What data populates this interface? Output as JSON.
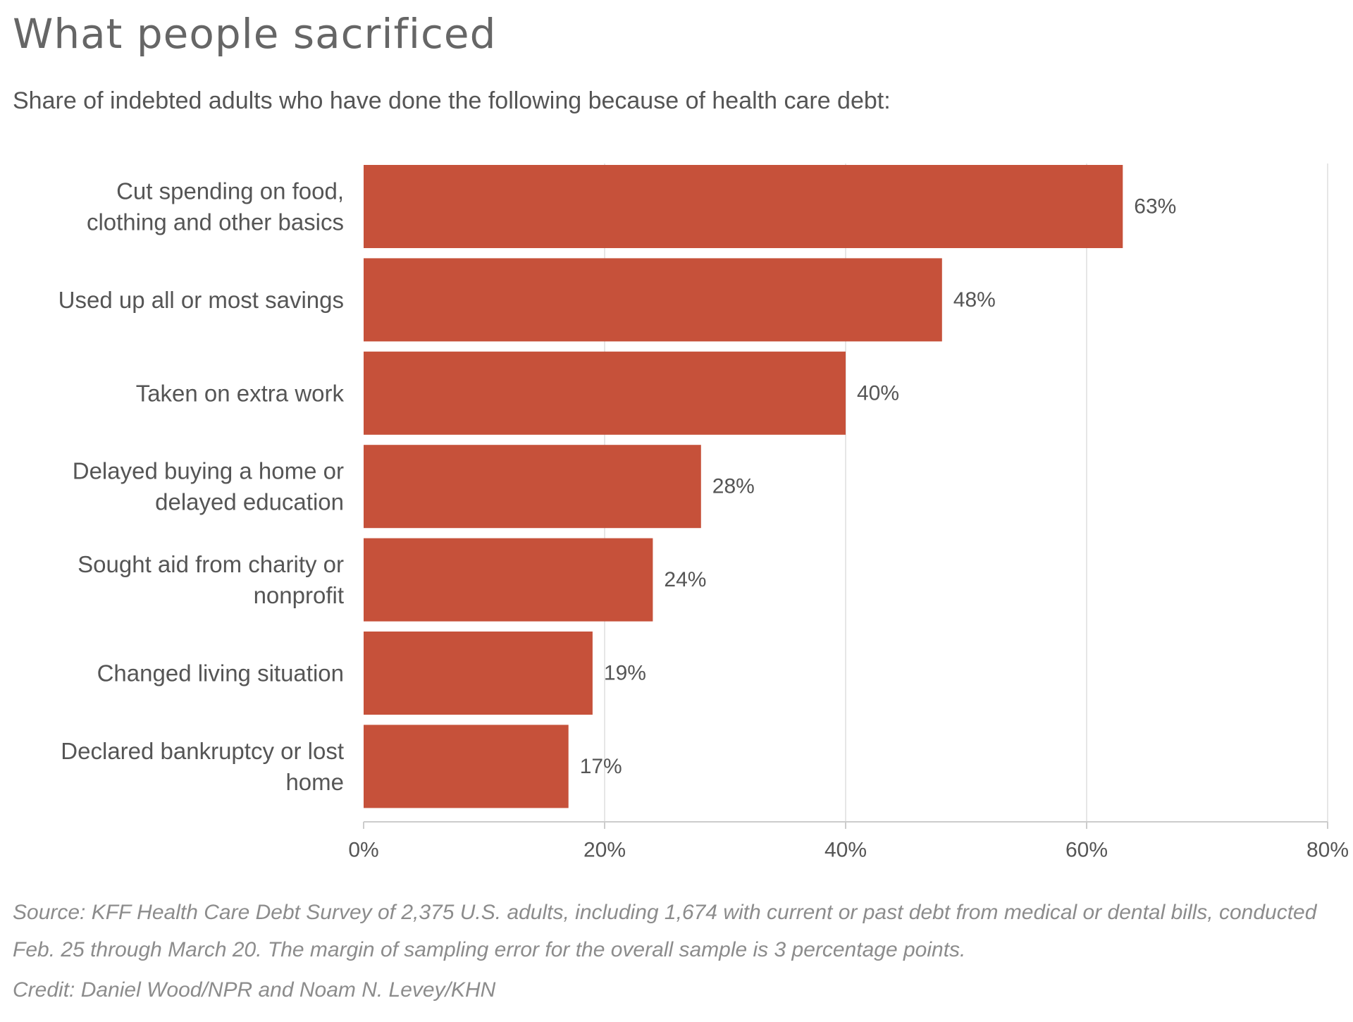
{
  "title": "What people sacrificed",
  "subtitle": "Share of indebted adults who have done the following because of health care debt:",
  "source": "Source: KFF Health Care Debt Survey of 2,375 U.S. adults, including 1,674 with current or past debt from medical or dental bills, conducted Feb. 25 through March 20. The margin of sampling error for the overall sample is 3 percentage points.",
  "credit": "Credit: Daniel Wood/NPR and Noam N. Levey/KHN",
  "chart_data": {
    "type": "bar",
    "orientation": "horizontal",
    "title": "What people sacrificed",
    "subtitle": "Share of indebted adults who have done the following because of health care debt:",
    "categories": [
      [
        "Cut spending on food,",
        "clothing and other basics"
      ],
      [
        "Used up all or most savings"
      ],
      [
        "Taken on extra work"
      ],
      [
        "Delayed buying a home or",
        "delayed education"
      ],
      [
        "Sought aid from charity or",
        "nonprofit"
      ],
      [
        "Changed living situation"
      ],
      [
        "Declared bankruptcy or lost",
        "home"
      ]
    ],
    "values": [
      63,
      48,
      40,
      28,
      24,
      19,
      17
    ],
    "value_labels": [
      "63%",
      "48%",
      "40%",
      "28%",
      "24%",
      "19%",
      "17%"
    ],
    "xlabel": "",
    "ylabel": "",
    "xlim": [
      0,
      80
    ],
    "ticks": [
      0,
      20,
      40,
      60,
      80
    ],
    "tick_labels": [
      "0%",
      "20%",
      "40%",
      "60%",
      "80%"
    ],
    "grid": "vertical",
    "legend": "none",
    "bar_color": "#c6513a",
    "grid_color": "#e6e6e6",
    "axis_color": "#cccccc"
  }
}
